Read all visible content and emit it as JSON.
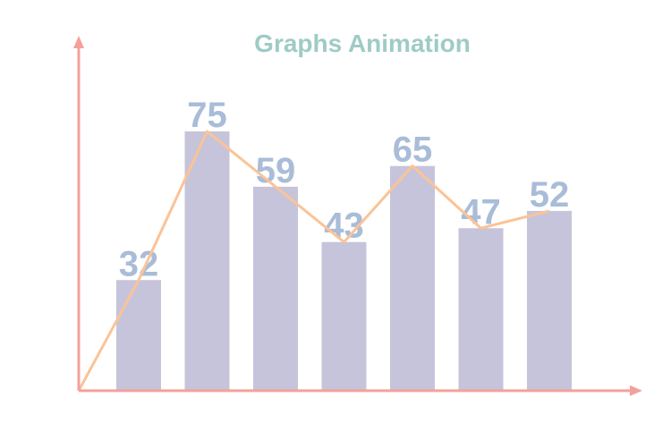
{
  "chart_data": {
    "type": "bar",
    "title": "Graphs Animation",
    "values": [
      32,
      75,
      59,
      43,
      65,
      47,
      52
    ],
    "color": "#c6c4da",
    "line_color": "#fbc396",
    "axis_color": "#f4a09a"
  }
}
